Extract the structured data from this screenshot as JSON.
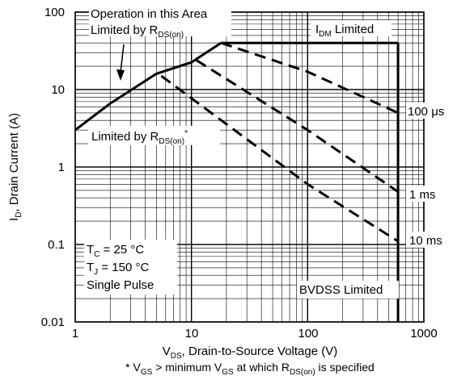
{
  "chart_data": {
    "type": "line",
    "x_scale": "log",
    "y_scale": "log",
    "xlim": [
      1,
      1000
    ],
    "ylim": [
      0.01,
      100
    ],
    "grid": true,
    "x_ticks": [
      "1",
      "10",
      "100",
      "1000"
    ],
    "y_ticks": [
      "100",
      "10",
      "1",
      "0.1",
      "0.01"
    ],
    "xlabel": {
      "main": "V",
      "sub": "DS",
      "rest": ", Drain-to-Source Voltage (V)"
    },
    "ylabel": {
      "main": "I",
      "sub": "D",
      "rest": ", Drain Current (A)"
    },
    "footnote": {
      "p1": "* V",
      "s1": "GS",
      "p2": " > minimum V",
      "s2": "GS",
      "p3": " at which R",
      "s3": "DS(on)",
      "p4": " is specified"
    },
    "series": [
      {
        "name": "Limited by RDS(on)",
        "style": "solid",
        "x": [
          1,
          2,
          5,
          10,
          18
        ],
        "y": [
          3,
          6.6,
          16,
          22.5,
          40
        ]
      },
      {
        "name": "IDM Limited",
        "style": "solid",
        "x": [
          18,
          100,
          600
        ],
        "y": [
          40,
          40,
          40
        ]
      },
      {
        "name": "BVDSS Limited",
        "style": "solid",
        "x": [
          600,
          600
        ],
        "y": [
          0.01,
          40
        ]
      },
      {
        "name": "100 μs",
        "style": "dashed",
        "x": [
          18,
          100,
          600
        ],
        "y": [
          40,
          17,
          5
        ]
      },
      {
        "name": "1 ms",
        "style": "dashed",
        "x": [
          11,
          100,
          600
        ],
        "y": [
          24,
          3,
          0.48
        ]
      },
      {
        "name": "10 ms",
        "style": "dashed",
        "x": [
          5.5,
          100,
          600
        ],
        "y": [
          15,
          0.6,
          0.11
        ]
      }
    ],
    "annotations": {
      "op_area_line1": "Operation in this Area",
      "op_area_line2_main": "Limited by R",
      "op_area_line2_sub": "DS(on)",
      "idm_main": "I",
      "idm_sub": "DM",
      "idm_rest": " Limited",
      "rds_main": "Limited by R",
      "rds_sub": "DS(on)",
      "rds_star": "*",
      "curve_100us": "100 μs",
      "curve_1ms": "1 ms",
      "curve_10ms": "10 ms",
      "tc_main": "T",
      "tc_sub": "C",
      "tc_rest": " = 25 °C",
      "tj_main": "T",
      "tj_sub": "J",
      "tj_rest": " = 150 °C",
      "single_pulse": "Single Pulse",
      "bvdss": "BVDSS Limited"
    }
  }
}
